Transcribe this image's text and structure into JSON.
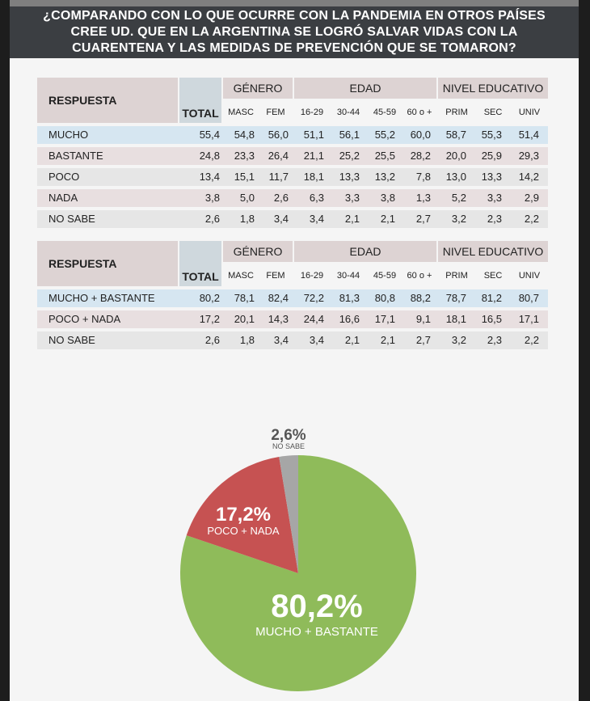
{
  "header": {
    "lines": [
      "¿COMPARANDO CON LO QUE OCURRE CON LA PANDEMIA EN OTROS PAÍSES",
      "CREE UD. QUE EN LA ARGENTINA SE LOGRÓ SALVAR VIDAS CON LA",
      "CUARENTENA Y LAS MEDIDAS DE PREVENCIÓN QUE SE TOMARON?"
    ]
  },
  "table_headers": {
    "respuesta": "RESPUESTA",
    "total": "TOTAL",
    "groups": [
      "GÉNERO",
      "EDAD",
      "NIVEL EDUCATIVO"
    ],
    "sub": [
      "MASC",
      "FEM",
      "16-29",
      "30-44",
      "45-59",
      "60 o +",
      "PRIM",
      "SEC",
      "UNIV"
    ]
  },
  "table1": {
    "rows": [
      {
        "label": "MUCHO",
        "values": [
          "55,4",
          "54,8",
          "56,0",
          "51,1",
          "56,1",
          "55,2",
          "60,0",
          "58,7",
          "55,3",
          "51,4"
        ]
      },
      {
        "label": "BASTANTE",
        "values": [
          "24,8",
          "23,3",
          "26,4",
          "21,1",
          "25,2",
          "25,5",
          "28,2",
          "20,0",
          "25,9",
          "29,3"
        ]
      },
      {
        "label": "POCO",
        "values": [
          "13,4",
          "15,1",
          "11,7",
          "18,1",
          "13,3",
          "13,2",
          "7,8",
          "13,0",
          "13,3",
          "14,2"
        ]
      },
      {
        "label": "NADA",
        "values": [
          "3,8",
          "5,0",
          "2,6",
          "6,3",
          "3,3",
          "3,8",
          "1,3",
          "5,2",
          "3,3",
          "2,9"
        ]
      },
      {
        "label": "NO SABE",
        "values": [
          "2,6",
          "1,8",
          "3,4",
          "3,4",
          "2,1",
          "2,1",
          "2,7",
          "3,2",
          "2,3",
          "2,2"
        ]
      }
    ]
  },
  "table2": {
    "rows": [
      {
        "label": "MUCHO  + BASTANTE",
        "values": [
          "80,2",
          "78,1",
          "82,4",
          "72,2",
          "81,3",
          "80,8",
          "88,2",
          "78,7",
          "81,2",
          "80,7"
        ]
      },
      {
        "label": "POCO + NADA",
        "values": [
          "17,2",
          "20,1",
          "14,3",
          "24,4",
          "16,6",
          "17,1",
          "9,1",
          "18,1",
          "16,5",
          "17,1"
        ]
      },
      {
        "label": "NO SABE",
        "values": [
          "2,6",
          "1,8",
          "3,4",
          "3,4",
          "2,1",
          "2,1",
          "2,7",
          "3,2",
          "2,3",
          "2,2"
        ]
      }
    ]
  },
  "chart_data": {
    "type": "pie",
    "slices": [
      {
        "label": "MUCHO + BASTANTE",
        "value": 80.2,
        "value_text": "80,2%",
        "color": "#8fbb5a"
      },
      {
        "label": "POCO + NADA",
        "value": 17.2,
        "value_text": "17,2%",
        "color": "#c65252"
      },
      {
        "label": "NO SABE",
        "value": 2.6,
        "value_text": "2,6%",
        "color": "#a6a6a6"
      }
    ]
  },
  "colors": {
    "row_blue": "#d6e6f1",
    "row_pink": "#e8dfe0",
    "row_grey": "#e6e6e6",
    "header_bg": "#3b3e42"
  }
}
